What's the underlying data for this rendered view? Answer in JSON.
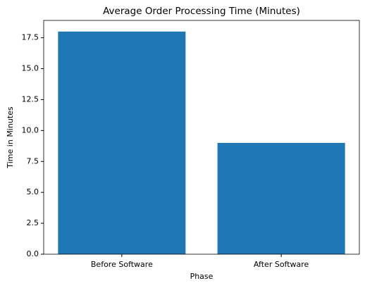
{
  "chart_data": {
    "type": "bar",
    "title": "Average Order Processing Time (Minutes)",
    "x_label": "Phase",
    "y_label": "Time in Minutes",
    "categories": [
      "Before Software",
      "After Software"
    ],
    "values": [
      18,
      9
    ],
    "color": "#1f77b4",
    "ylim": [
      0,
      18.9
    ],
    "yticks": [
      {
        "value": 0,
        "label": "0.0"
      },
      2.5,
      {
        "value": 5,
        "label": "5.0"
      },
      7.5,
      {
        "value": 10,
        "label": "10.0"
      },
      12.5,
      {
        "value": 15,
        "label": "15.0"
      },
      17.5
    ],
    "grid": false
  }
}
